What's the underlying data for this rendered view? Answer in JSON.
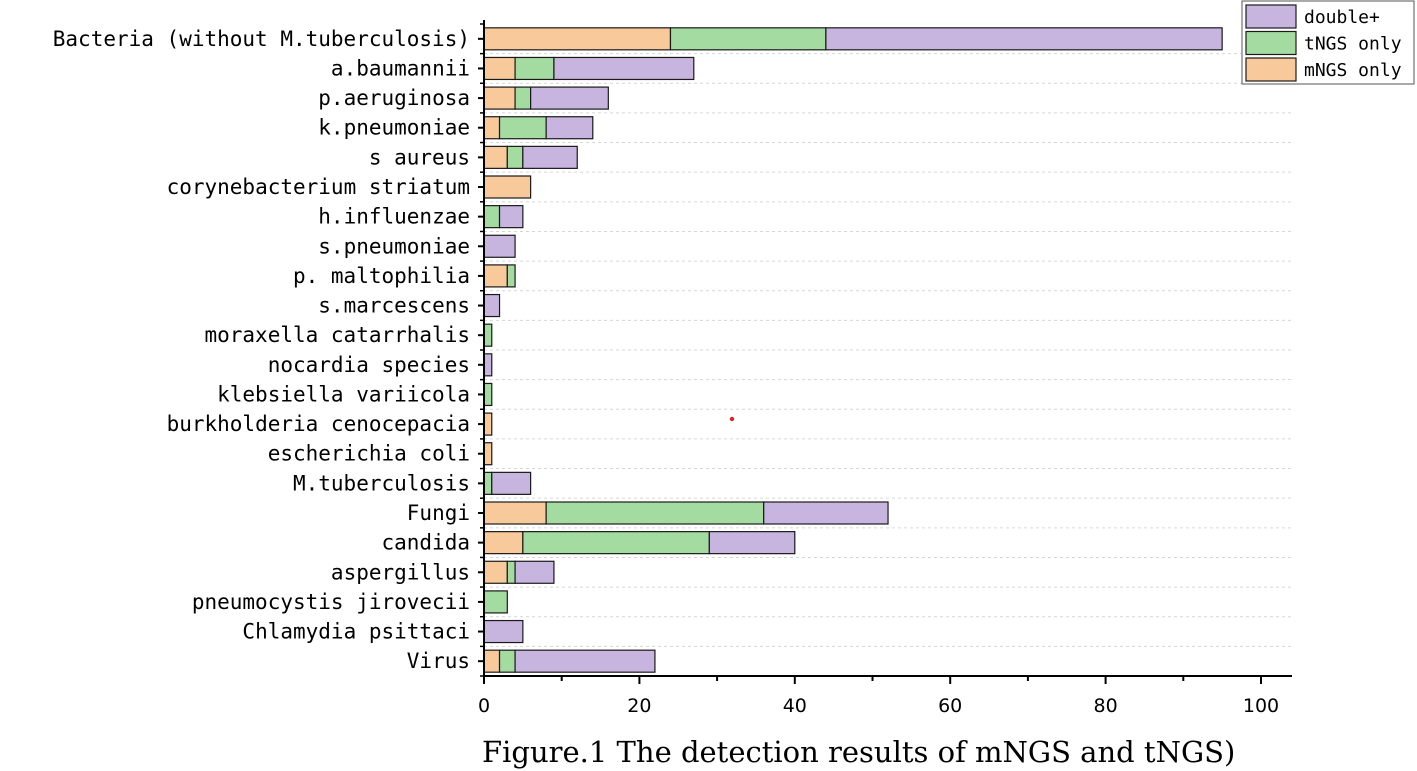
{
  "chart_data": {
    "type": "bar",
    "orientation": "horizontal",
    "stacked": true,
    "title": "",
    "caption": "Figure.1 The detection results of mNGS and tNGS)",
    "xlabel": "",
    "ylabel": "",
    "xlim": [
      0,
      104
    ],
    "xticks": [
      0,
      20,
      40,
      60,
      80,
      100
    ],
    "grid": "horizontal dashed",
    "legend_position": "top-right",
    "categories": [
      "Bacteria (without M.tuberculosis)",
      "a.baumannii",
      "p.aeruginosa",
      "k.pneumoniae",
      "s aureus",
      "corynebacterium striatum",
      "h.influenzae",
      "s.pneumoniae",
      "p. maltophilia",
      "s.marcescens",
      "moraxella catarrhalis",
      "nocardia species",
      "klebsiella variicola",
      "burkholderia cenocepacia",
      "escherichia coli",
      "M.tuberculosis",
      "Fungi",
      "candida",
      "aspergillus",
      "pneumocystis jirovecii",
      "Chlamydia psittaci",
      "Virus"
    ],
    "series": [
      {
        "name": "mNGS only",
        "color": "#f8c99a",
        "values": [
          24,
          4,
          4,
          2,
          3,
          6,
          0,
          0,
          3,
          0,
          0,
          0,
          0,
          1,
          1,
          0,
          8,
          5,
          3,
          0,
          0,
          2
        ]
      },
      {
        "name": "tNGS only",
        "color": "#a3dba0",
        "values": [
          20,
          5,
          2,
          6,
          2,
          0,
          2,
          0,
          1,
          0,
          1,
          0,
          1,
          0,
          0,
          1,
          28,
          24,
          1,
          3,
          0,
          2
        ]
      },
      {
        "name": "double+",
        "color": "#c7b5df",
        "values": [
          51,
          18,
          10,
          6,
          7,
          0,
          3,
          4,
          0,
          2,
          0,
          1,
          0,
          0,
          0,
          5,
          16,
          11,
          5,
          0,
          5,
          18
        ]
      }
    ],
    "legend_order": [
      "double+",
      "tNGS only",
      "mNGS only"
    ]
  }
}
